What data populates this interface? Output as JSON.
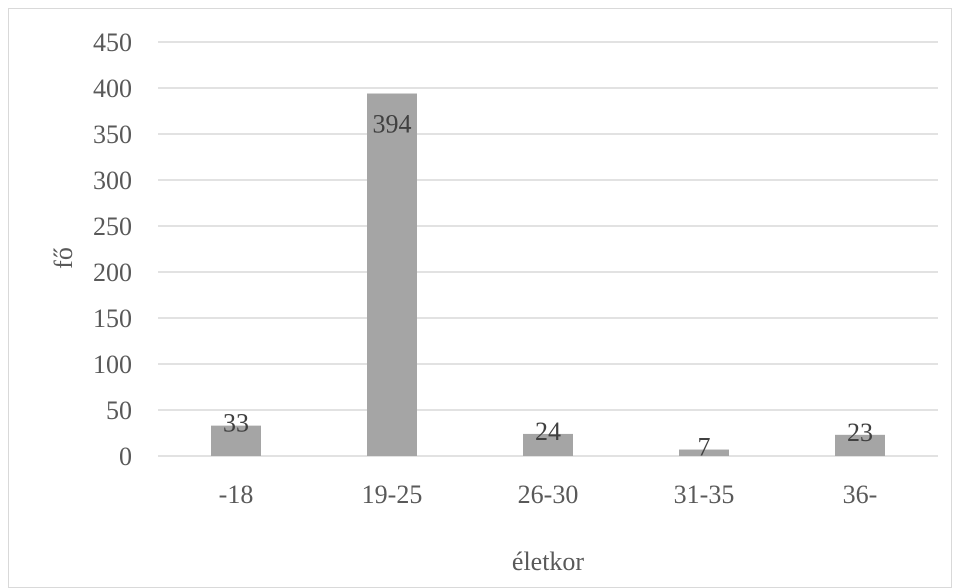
{
  "chart_data": {
    "type": "bar",
    "title": "",
    "xlabel": "életkor",
    "ylabel": "fő",
    "categories": [
      "-18",
      "19-25",
      "26-30",
      "31-35",
      "36-"
    ],
    "values": [
      33,
      394,
      24,
      7,
      23
    ],
    "data_labels": [
      "33",
      "394",
      "24",
      "7",
      "23"
    ],
    "ylim": [
      0,
      450
    ],
    "yticks": [
      "0",
      "50",
      "100",
      "150",
      "200",
      "250",
      "300",
      "350",
      "400",
      "450"
    ],
    "grid": true,
    "legend": "none",
    "colors": {
      "bar": "#a5a5a5",
      "grid": "#d9d9d9",
      "text": "#595959"
    }
  }
}
